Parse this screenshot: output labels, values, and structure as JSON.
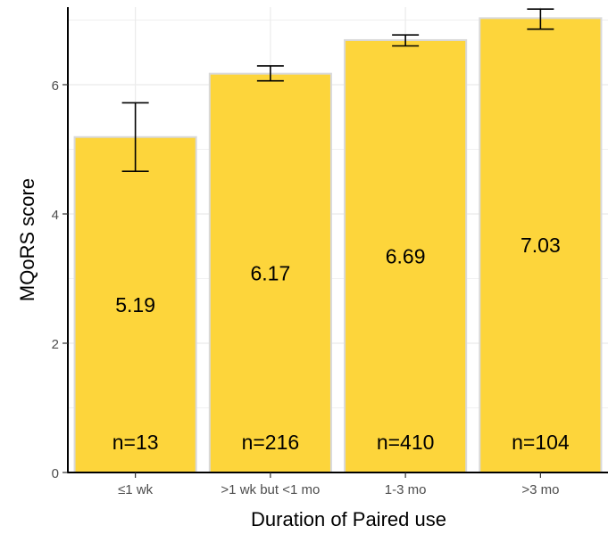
{
  "chart_data": {
    "type": "bar",
    "categories": [
      "≤1 wk",
      ">1 wk but <1 mo",
      "1-3 mo",
      ">3 mo"
    ],
    "values": [
      5.19,
      6.17,
      6.69,
      7.03
    ],
    "value_labels": [
      "5.19",
      "6.17",
      "6.69",
      "7.03"
    ],
    "n_labels": [
      "n=13",
      "n=216",
      "n=410",
      "n=104"
    ],
    "error_bars": [
      {
        "low": 4.66,
        "high": 5.72
      },
      {
        "low": 6.06,
        "high": 6.29
      },
      {
        "low": 6.6,
        "high": 6.77
      },
      {
        "low": 6.86,
        "high": 7.17
      }
    ],
    "xlabel": "Duration of Paired use",
    "ylabel": "MQoRS score",
    "ylim": [
      0,
      7.2
    ],
    "yticks": [
      0,
      2,
      4,
      6
    ],
    "bar_color": "#FDD53B",
    "bar_outline_color": "#D9D9D9",
    "grid": true
  }
}
